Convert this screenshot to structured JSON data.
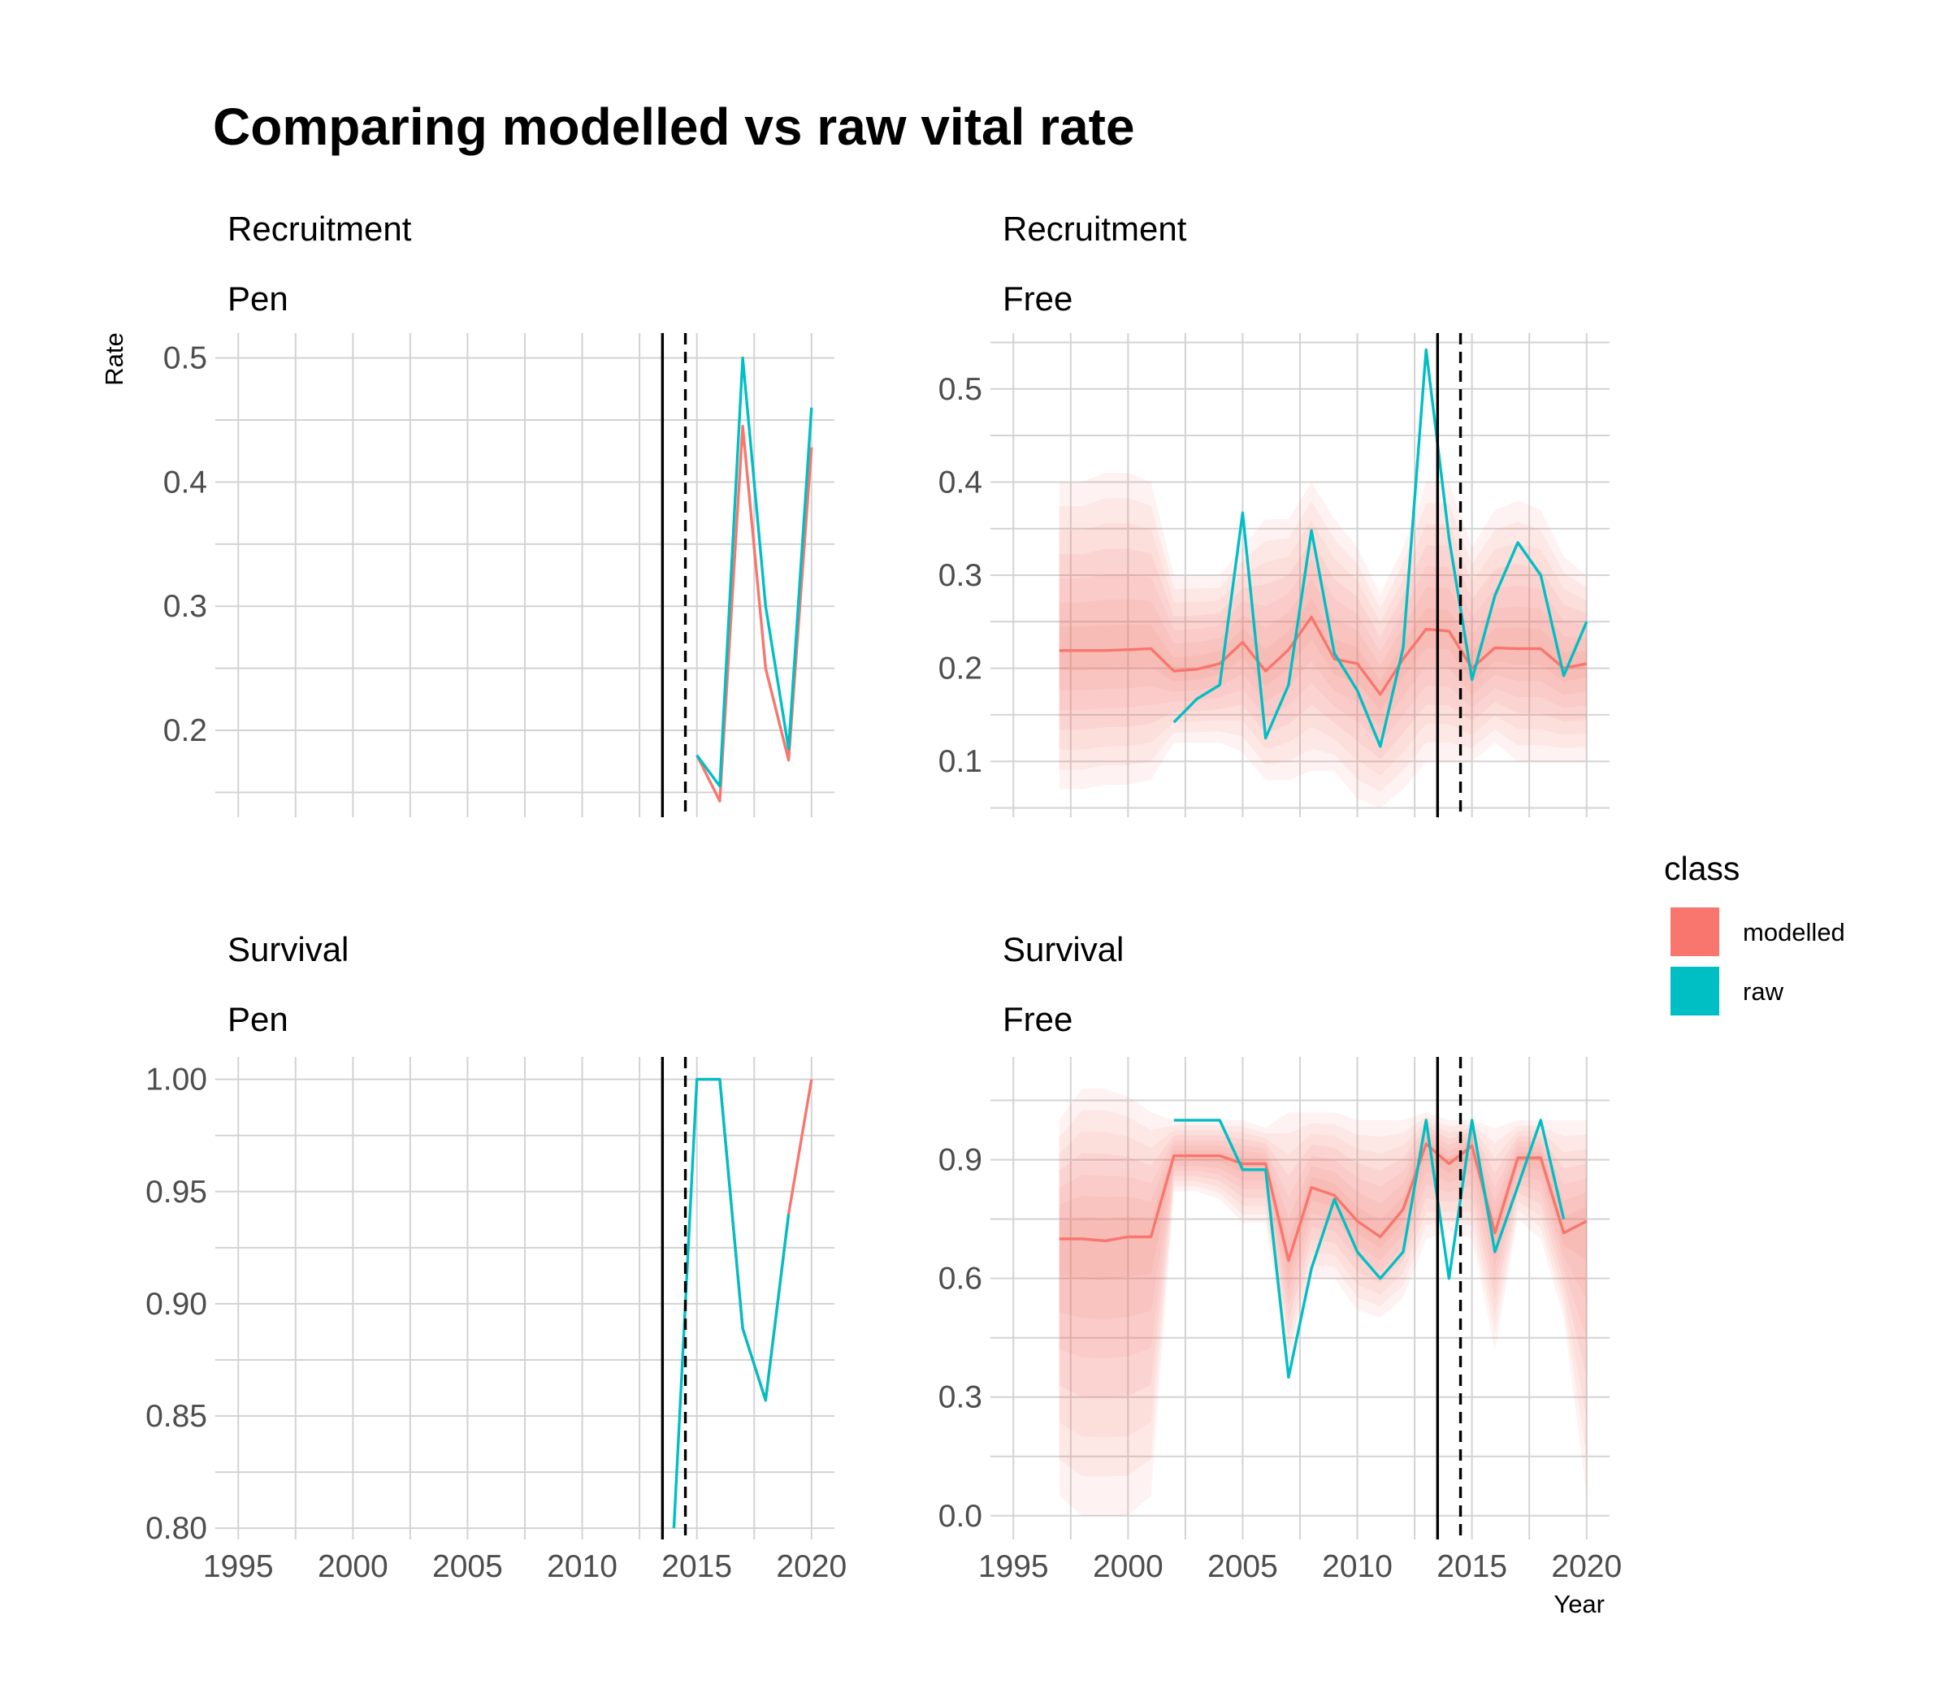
{
  "title": "Comparing modelled vs raw vital rate",
  "chart_data": {
    "type": "line",
    "xlabel": "Year",
    "ylabel": "Rate",
    "xlim": [
      1994,
      2021
    ],
    "x_ticks": [
      1995,
      2000,
      2005,
      2010,
      2015,
      2020
    ],
    "x_tick_labels": [
      "1995",
      "2000",
      "2005",
      "2010",
      "2015",
      "2020"
    ],
    "vlines": [
      {
        "x": 2013.5,
        "style": "solid"
      },
      {
        "x": 2014.5,
        "style": "dashed"
      }
    ],
    "legend": {
      "title": "class",
      "position": "right",
      "entries": [
        {
          "label": "modelled",
          "color": "#F8766D"
        },
        {
          "label": "raw",
          "color": "#00BFC4"
        }
      ]
    },
    "panels": [
      {
        "row_label": "Recruitment",
        "col_label": "Pen",
        "ylim": [
          0.13,
          0.52
        ],
        "y_ticks": [
          0.2,
          0.3,
          0.4,
          0.5
        ],
        "y_tick_labels": [
          "0.2",
          "0.3",
          "0.4",
          "0.5"
        ],
        "series": [
          {
            "name": "modelled",
            "color": "#F8766D",
            "x": [
              2015,
              2016,
              2017,
              2018,
              2019,
              2020
            ],
            "y": [
              0.18,
              0.143,
              0.445,
              0.25,
              0.176,
              0.428
            ]
          },
          {
            "name": "raw",
            "color": "#00BFC4",
            "x": [
              2015,
              2016,
              2017,
              2018,
              2019,
              2020
            ],
            "y": [
              0.18,
              0.155,
              0.5,
              0.3,
              0.185,
              0.46
            ]
          }
        ]
      },
      {
        "row_label": "Recruitment",
        "col_label": "Free",
        "ylim": [
          0.04,
          0.56
        ],
        "y_ticks": [
          0.1,
          0.2,
          0.3,
          0.4,
          0.5
        ],
        "y_tick_labels": [
          "0.1",
          "0.2",
          "0.3",
          "0.4",
          "0.5"
        ],
        "band": {
          "x": [
            1997,
            1998,
            1999,
            2000,
            2001,
            2002,
            2003,
            2004,
            2005,
            2006,
            2007,
            2008,
            2009,
            2010,
            2011,
            2012,
            2013,
            2014,
            2015,
            2016,
            2017,
            2018,
            2019,
            2020
          ],
          "lower": [
            0.07,
            0.07,
            0.075,
            0.075,
            0.08,
            0.12,
            0.12,
            0.12,
            0.11,
            0.08,
            0.08,
            0.09,
            0.09,
            0.06,
            0.05,
            0.07,
            0.1,
            0.1,
            0.1,
            0.12,
            0.1,
            0.1,
            0.1,
            0.1
          ],
          "upper": [
            0.4,
            0.4,
            0.41,
            0.41,
            0.4,
            0.3,
            0.3,
            0.3,
            0.33,
            0.36,
            0.36,
            0.4,
            0.36,
            0.33,
            0.28,
            0.33,
            0.4,
            0.4,
            0.33,
            0.37,
            0.38,
            0.37,
            0.32,
            0.3
          ]
        },
        "series": [
          {
            "name": "modelled",
            "color": "#F8766D",
            "x": [
              1997,
              1998,
              1999,
              2000,
              2001,
              2002,
              2003,
              2004,
              2005,
              2006,
              2007,
              2008,
              2009,
              2010,
              2011,
              2012,
              2013,
              2014,
              2015,
              2016,
              2017,
              2018,
              2019,
              2020
            ],
            "y": [
              0.219,
              0.219,
              0.219,
              0.22,
              0.221,
              0.197,
              0.199,
              0.205,
              0.228,
              0.197,
              0.22,
              0.255,
              0.21,
              0.205,
              0.172,
              0.21,
              0.242,
              0.24,
              0.2,
              0.222,
              0.221,
              0.221,
              0.2,
              0.205
            ]
          },
          {
            "name": "raw",
            "color": "#00BFC4",
            "x": [
              2002,
              2003,
              2004,
              2005,
              2006,
              2007,
              2008,
              2009,
              2010,
              2011,
              2012,
              2013,
              2014,
              2015,
              2016,
              2017,
              2018,
              2019,
              2020
            ],
            "y": [
              0.142,
              0.167,
              0.182,
              0.367,
              0.125,
              0.182,
              0.348,
              0.216,
              0.176,
              0.116,
              0.222,
              0.542,
              0.34,
              0.188,
              0.278,
              0.335,
              0.3,
              0.192,
              0.25
            ]
          }
        ]
      },
      {
        "row_label": "Survival",
        "col_label": "Pen",
        "ylim": [
          0.795,
          1.01
        ],
        "y_ticks": [
          0.8,
          0.85,
          0.9,
          0.95,
          1.0
        ],
        "y_tick_labels": [
          "0.80",
          "0.85",
          "0.90",
          "0.95",
          "1.00"
        ],
        "series": [
          {
            "name": "modelled",
            "color": "#F8766D",
            "x": [
              2015,
              2016,
              2017,
              2018,
              2019,
              2020
            ],
            "y": [
              1.0,
              1.0,
              0.889,
              0.857,
              0.94,
              1.0
            ]
          },
          {
            "name": "raw",
            "color": "#00BFC4",
            "x": [
              2014,
              2015,
              2016,
              2017,
              2018,
              2019
            ],
            "y": [
              0.8,
              1.0,
              1.0,
              0.889,
              0.857,
              0.94
            ]
          }
        ]
      },
      {
        "row_label": "Survival",
        "col_label": "Free",
        "ylim": [
          -0.06,
          1.16
        ],
        "y_ticks": [
          0.0,
          0.3,
          0.6,
          0.9
        ],
        "y_tick_labels": [
          "0.0",
          "0.3",
          "0.6",
          "0.9"
        ],
        "band": {
          "x": [
            1997,
            1998,
            1999,
            2000,
            2001,
            2002,
            2003,
            2004,
            2005,
            2006,
            2007,
            2008,
            2009,
            2010,
            2011,
            2012,
            2013,
            2014,
            2015,
            2016,
            2017,
            2018,
            2019,
            2020
          ],
          "lower": [
            0.05,
            0.0,
            0.0,
            0.0,
            0.05,
            0.82,
            0.82,
            0.8,
            0.74,
            0.74,
            0.38,
            0.6,
            0.6,
            0.52,
            0.5,
            0.55,
            0.7,
            0.72,
            0.7,
            0.42,
            0.75,
            0.7,
            0.5,
            0.05
          ],
          "upper": [
            1.0,
            1.08,
            1.08,
            1.06,
            1.02,
            1.0,
            1.0,
            1.0,
            1.0,
            0.98,
            1.02,
            1.02,
            1.02,
            1.0,
            1.0,
            1.0,
            1.02,
            1.0,
            1.0,
            0.98,
            1.0,
            1.0,
            1.0,
            1.0
          ]
        },
        "series": [
          {
            "name": "modelled",
            "color": "#F8766D",
            "x": [
              1997,
              1998,
              1999,
              2000,
              2001,
              2002,
              2003,
              2004,
              2005,
              2006,
              2007,
              2008,
              2009,
              2010,
              2011,
              2012,
              2013,
              2014,
              2015,
              2016,
              2017,
              2018,
              2019,
              2020
            ],
            "y": [
              0.7,
              0.7,
              0.695,
              0.705,
              0.705,
              0.91,
              0.91,
              0.91,
              0.89,
              0.89,
              0.645,
              0.83,
              0.81,
              0.745,
              0.705,
              0.775,
              0.94,
              0.89,
              0.935,
              0.715,
              0.905,
              0.905,
              0.715,
              0.745
            ]
          },
          {
            "name": "raw",
            "color": "#00BFC4",
            "x": [
              2002,
              2003,
              2004,
              2005,
              2006,
              2007,
              2008,
              2009,
              2010,
              2011,
              2012,
              2013,
              2014,
              2015,
              2016,
              2017,
              2018,
              2019
            ],
            "y": [
              1.0,
              1.0,
              1.0,
              0.875,
              0.875,
              0.35,
              0.625,
              0.8,
              0.667,
              0.6,
              0.667,
              1.0,
              0.6,
              1.0,
              0.667,
              0.833,
              1.0,
              0.75
            ]
          }
        ]
      }
    ]
  }
}
